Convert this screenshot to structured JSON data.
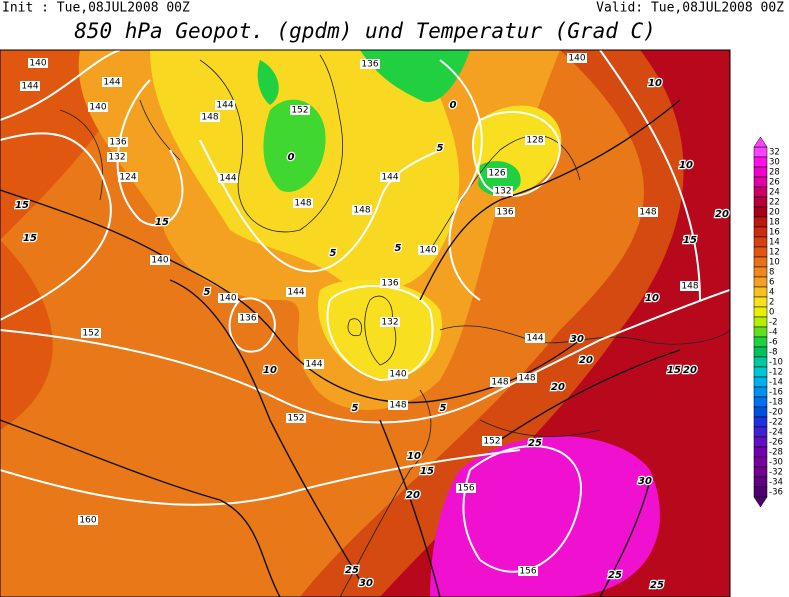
{
  "header": {
    "init": "Init : Tue,08JUL2008 00Z",
    "valid": "Valid: Tue,08JUL2008 00Z",
    "title": "850 hPa Geopot. (gpdm) und Temperatur (Grad C)"
  },
  "colorbar": {
    "values": [
      32,
      30,
      28,
      26,
      24,
      22,
      20,
      18,
      16,
      14,
      12,
      10,
      8,
      6,
      4,
      2,
      0,
      -2,
      -4,
      -6,
      -8,
      -10,
      -12,
      -14,
      -16,
      -18,
      -20,
      -22,
      -24,
      -26,
      -28,
      -30,
      -32,
      -34,
      -36
    ],
    "colors": [
      "#ff40ff",
      "#ff10e8",
      "#f000c8",
      "#e000a8",
      "#c80068",
      "#b40038",
      "#a8001c",
      "#bc1810",
      "#cc2c10",
      "#d84010",
      "#e05810",
      "#e87018",
      "#f08820",
      "#f4a020",
      "#f8c020",
      "#f8e020",
      "#e8f000",
      "#b0f000",
      "#60e020",
      "#20d040",
      "#00c060",
      "#00c8a0",
      "#00c8d0",
      "#00b0f0",
      "#0090f0",
      "#0070f0",
      "#0050e0",
      "#2030e0",
      "#4020d0",
      "#6010c0",
      "#7000b0",
      "#7800a0",
      "#700090",
      "#600080",
      "#500070"
    ]
  },
  "contour_labels": {
    "geopotential": [
      140,
      144,
      144,
      140,
      136,
      132,
      124,
      144,
      148,
      152,
      144,
      148,
      144,
      148,
      140,
      140,
      136,
      140,
      136,
      144,
      132,
      152,
      144,
      140,
      148,
      152,
      144,
      148,
      148,
      152,
      160,
      156,
      156,
      136,
      140,
      128,
      126,
      132,
      136,
      148,
      148
    ],
    "temperature": [
      15,
      15,
      10,
      10,
      5,
      0,
      0,
      5,
      5,
      5,
      10,
      5,
      5,
      10,
      15,
      20,
      25,
      20,
      20,
      30,
      15,
      20,
      10,
      15,
      20,
      25,
      30,
      30,
      25,
      25,
      15
    ]
  }
}
